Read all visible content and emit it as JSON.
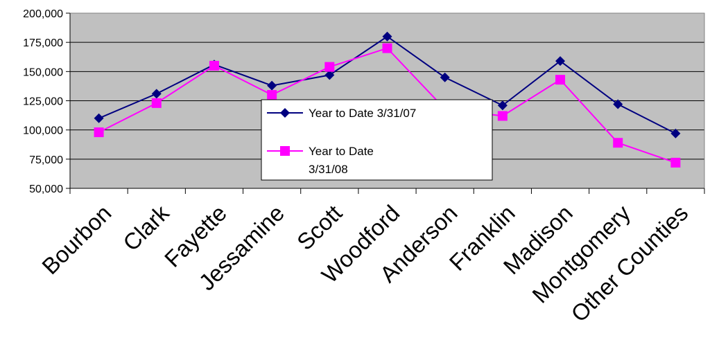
{
  "chart_data": {
    "type": "line",
    "title": "",
    "xlabel": "",
    "ylabel": "",
    "categories": [
      "Bourbon",
      "Clark",
      "Fayette",
      "Jessamine",
      "Scott",
      "Woodford",
      "Anderson",
      "Franklin",
      "Madison",
      "Montgomery",
      "Other Counties"
    ],
    "ylim": [
      50000,
      200000
    ],
    "yticks": [
      50000,
      75000,
      100000,
      125000,
      150000,
      175000,
      200000
    ],
    "ytick_labels": [
      "50,000",
      "75,000",
      "100,000",
      "125,000",
      "150,000",
      "175,000",
      "200,000"
    ],
    "grid": true,
    "legend_position": "center",
    "plot_background": "#c0c0c0",
    "series": [
      {
        "name": "Year to Date 3/31/07",
        "legend_lines": [
          "Year to Date 3/31/07"
        ],
        "color": "#000080",
        "marker": "diamond",
        "values": [
          110000,
          131000,
          156000,
          138000,
          147000,
          180000,
          145000,
          121000,
          159000,
          122000,
          97000
        ]
      },
      {
        "name": "Year to Date 3/31/08",
        "legend_lines": [
          "Year to Date",
          "3/31/08"
        ],
        "color": "#ff00ff",
        "marker": "square",
        "values": [
          98000,
          123000,
          155000,
          130000,
          154000,
          170000,
          118000,
          112000,
          143000,
          89000,
          72000
        ]
      }
    ]
  }
}
